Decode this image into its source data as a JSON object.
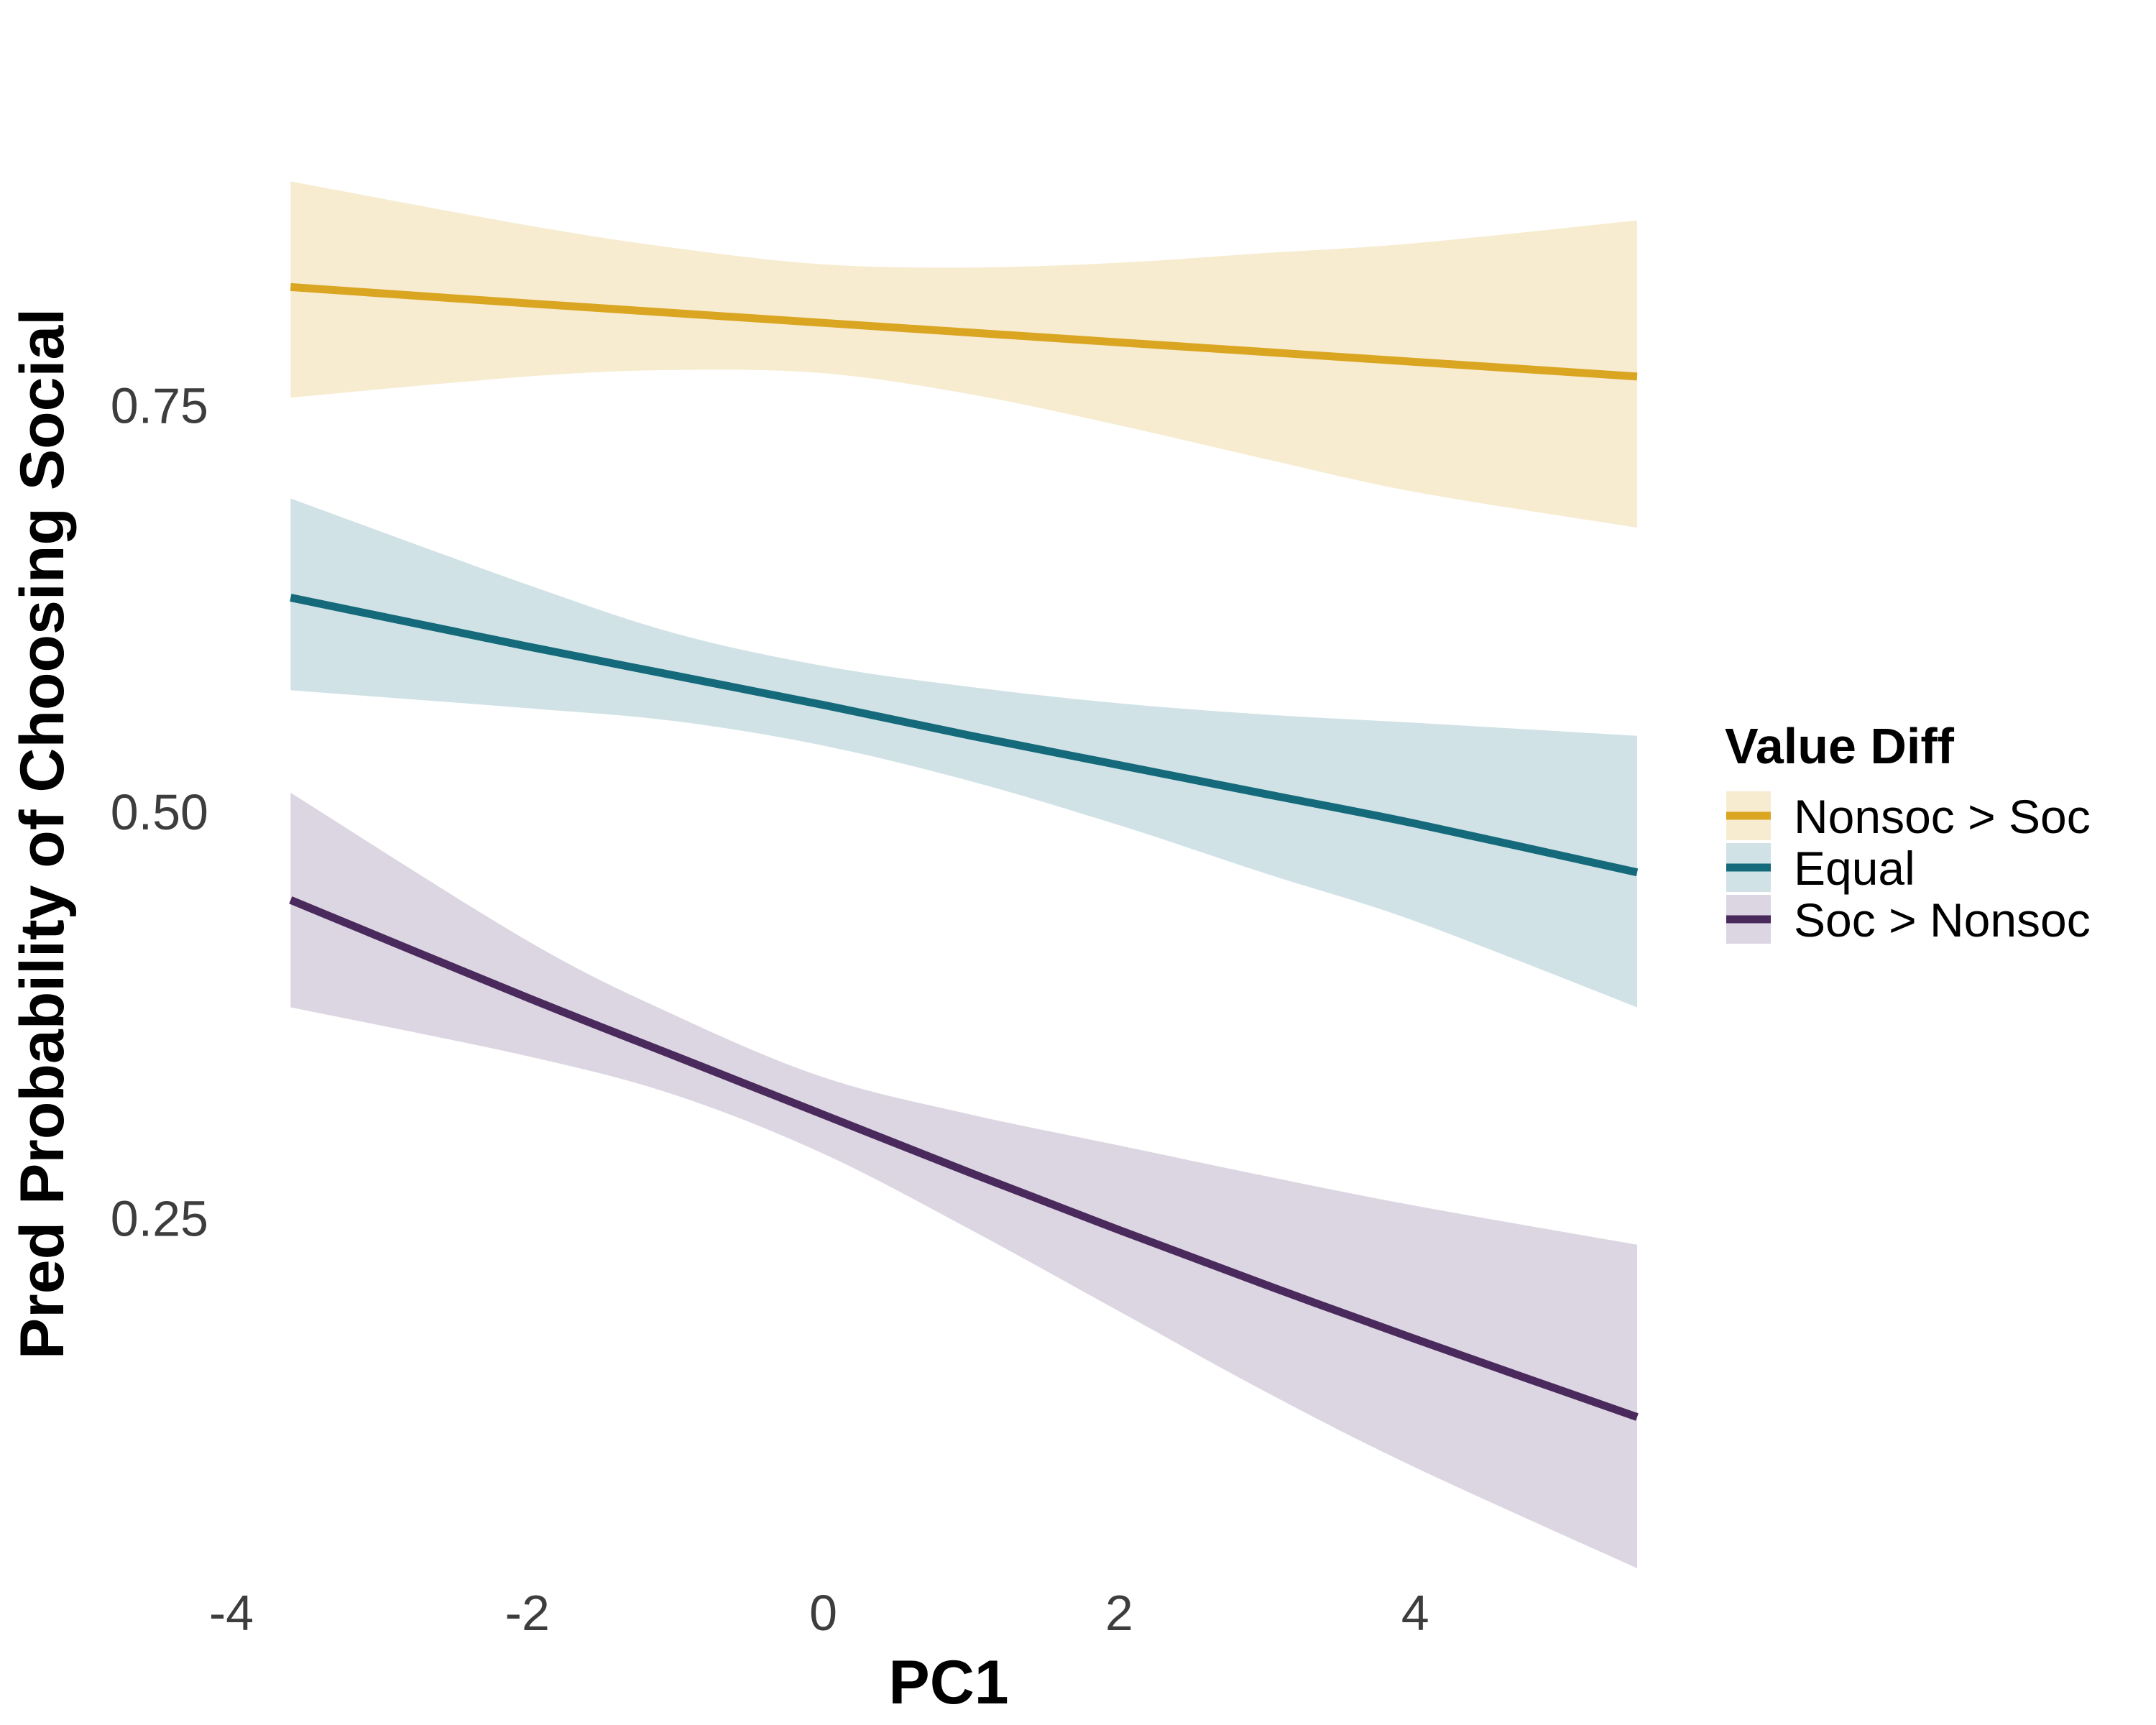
{
  "chart_data": {
    "type": "line",
    "xlabel": "PC1",
    "ylabel": "Pred Probability of Choosing Social",
    "xlim": [
      -4,
      5.5
    ],
    "ylim": [
      0.05,
      0.92
    ],
    "x_ticks": [
      -4,
      -2,
      0,
      2,
      4
    ],
    "x_tick_labels": [
      "-4",
      "-2",
      "0",
      "2",
      "4"
    ],
    "y_ticks": [
      0.25,
      0.5,
      0.75
    ],
    "y_tick_labels": [
      "0.25",
      "0.50",
      "0.75"
    ],
    "grid": false,
    "legend": {
      "title": "Value Diff",
      "placement": "right",
      "entries": [
        "Nonsoc > Soc",
        "Equal",
        "Soc > Nonsoc"
      ]
    },
    "series": [
      {
        "name": "Nonsoc > Soc",
        "color": "#DAA520",
        "band_color": "#F7ECD0",
        "x": [
          -3.6,
          -2,
          -1,
          0,
          1,
          2,
          3,
          4,
          5.5
        ],
        "y": [
          0.823,
          0.813,
          0.807,
          0.801,
          0.795,
          0.789,
          0.783,
          0.777,
          0.768
        ],
        "lower": [
          0.755,
          0.768,
          0.772,
          0.77,
          0.757,
          0.738,
          0.717,
          0.697,
          0.675
        ],
        "upper": [
          0.888,
          0.861,
          0.847,
          0.837,
          0.835,
          0.838,
          0.844,
          0.85,
          0.864
        ]
      },
      {
        "name": "Equal",
        "color": "#14697A",
        "band_color": "#D1E2E6",
        "x": [
          -3.6,
          -2,
          -1,
          0,
          1,
          2,
          3,
          4,
          5.5
        ],
        "y": [
          0.632,
          0.602,
          0.584,
          0.566,
          0.547,
          0.529,
          0.511,
          0.493,
          0.463
        ],
        "lower": [
          0.575,
          0.564,
          0.556,
          0.541,
          0.519,
          0.492,
          0.462,
          0.433,
          0.38
        ],
        "upper": [
          0.693,
          0.64,
          0.61,
          0.59,
          0.577,
          0.567,
          0.56,
          0.555,
          0.547
        ]
      },
      {
        "name": "Soc > Nonsoc",
        "color": "#4A2A5C",
        "band_color": "#DCD6E2",
        "x": [
          -3.6,
          -2,
          -1,
          0,
          1,
          2,
          3,
          4,
          5.5
        ],
        "y": [
          0.446,
          0.386,
          0.35,
          0.314,
          0.278,
          0.243,
          0.209,
          0.176,
          0.128
        ],
        "lower": [
          0.38,
          0.35,
          0.326,
          0.29,
          0.243,
          0.193,
          0.143,
          0.097,
          0.035
        ],
        "upper": [
          0.512,
          0.421,
          0.375,
          0.337,
          0.314,
          0.295,
          0.276,
          0.258,
          0.234
        ]
      }
    ]
  }
}
